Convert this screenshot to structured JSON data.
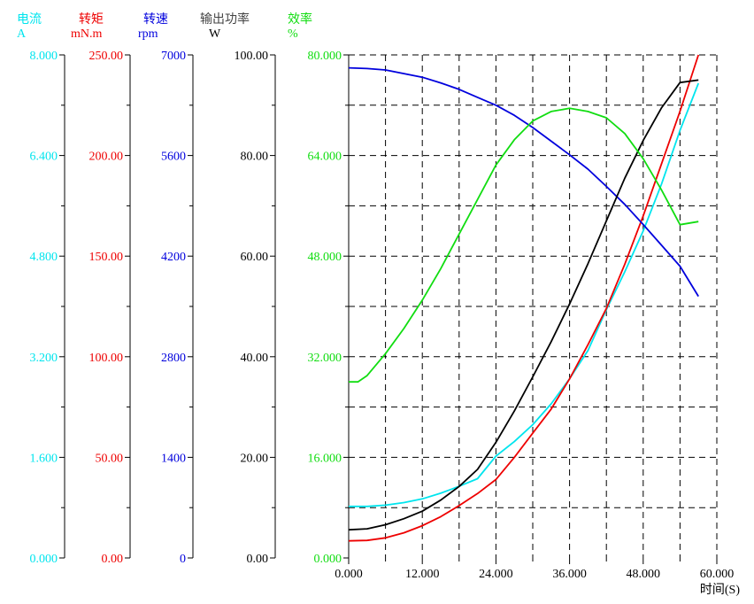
{
  "colors": {
    "current": "#00e5ee",
    "torque": "#ee0000",
    "speed": "#0000dd",
    "power": "#000000",
    "efficiency": "#11dd11",
    "grid": "#000000",
    "header_power": "#444444"
  },
  "axes": [
    {
      "key": "current",
      "name": "电流",
      "unit": "A",
      "ticks": [
        "0.000",
        "1.600",
        "3.200",
        "4.800",
        "6.400",
        "8.000"
      ]
    },
    {
      "key": "torque",
      "name": "转矩",
      "unit": "mN.m",
      "ticks": [
        "0.00",
        "50.00",
        "100.00",
        "150.00",
        "200.00",
        "250.00"
      ]
    },
    {
      "key": "speed",
      "name": "转速",
      "unit": "rpm",
      "ticks": [
        "0",
        "1400",
        "2800",
        "4200",
        "5600",
        "7000"
      ]
    },
    {
      "key": "power",
      "name": "输出功率",
      "unit": "W",
      "ticks": [
        "0.00",
        "20.00",
        "40.00",
        "60.00",
        "80.00",
        "100.00"
      ]
    },
    {
      "key": "efficiency",
      "name": "效率",
      "unit": "%",
      "ticks": [
        "0.000",
        "16.000",
        "32.000",
        "48.000",
        "64.000",
        "80.000"
      ]
    }
  ],
  "chart_data": {
    "type": "line",
    "xlabel": "时间(S)",
    "x_ticks": [
      "0.000",
      "12.000",
      "24.000",
      "36.000",
      "48.000",
      "60.000"
    ],
    "xlim": [
      0,
      60
    ],
    "grid": true,
    "series": [
      {
        "name": "电流",
        "unit": "A",
        "axis": "current",
        "ylim": [
          0,
          8
        ],
        "x": [
          0,
          3,
          6,
          9,
          12,
          15,
          18,
          21,
          24,
          27,
          30,
          33,
          36,
          39,
          42,
          45,
          48,
          51,
          54,
          57
        ],
        "y": [
          0.82,
          0.82,
          0.84,
          0.88,
          0.94,
          1.03,
          1.14,
          1.26,
          1.62,
          1.85,
          2.12,
          2.45,
          2.85,
          3.3,
          3.95,
          4.55,
          5.2,
          5.95,
          6.8,
          7.55
        ]
      },
      {
        "name": "转矩",
        "unit": "mN.m",
        "axis": "torque",
        "ylim": [
          0,
          250
        ],
        "x": [
          0,
          3,
          6,
          9,
          12,
          15,
          18,
          21,
          24,
          27,
          30,
          33,
          36,
          39,
          42,
          45,
          48,
          51,
          54,
          57
        ],
        "y": [
          8.5,
          8.7,
          10,
          12.5,
          16,
          20.5,
          26,
          32,
          39,
          50,
          62,
          74,
          89,
          106,
          124,
          146,
          170,
          196,
          222,
          250
        ]
      },
      {
        "name": "转速",
        "unit": "rpm",
        "axis": "speed",
        "ylim": [
          0,
          7000
        ],
        "x": [
          0,
          3,
          6,
          9,
          12,
          15,
          18,
          21,
          24,
          27,
          30,
          33,
          36,
          39,
          42,
          45,
          48,
          51,
          54,
          57
        ],
        "y": [
          6820,
          6810,
          6790,
          6740,
          6690,
          6610,
          6520,
          6410,
          6300,
          6160,
          5990,
          5800,
          5610,
          5410,
          5170,
          4920,
          4640,
          4350,
          4060,
          3640
        ]
      },
      {
        "name": "输出功率",
        "unit": "W",
        "axis": "power",
        "ylim": [
          0,
          100
        ],
        "x": [
          0,
          3,
          6,
          9,
          12,
          15,
          18,
          21,
          24,
          27,
          30,
          33,
          36,
          39,
          42,
          45,
          48,
          51,
          54,
          57
        ],
        "y": [
          5.6,
          5.8,
          6.6,
          7.8,
          9.3,
          11.5,
          14.2,
          17.6,
          23,
          29.2,
          36,
          43,
          50.5,
          58.5,
          67,
          75.5,
          83,
          89.5,
          94.5,
          95
        ]
      },
      {
        "name": "效率",
        "unit": "%",
        "axis": "efficiency",
        "ylim": [
          0,
          80
        ],
        "x": [
          0,
          1.5,
          3,
          6,
          9,
          12,
          15,
          18,
          21,
          24,
          27,
          30,
          33,
          36,
          39,
          42,
          45,
          48,
          51,
          54,
          57
        ],
        "y": [
          28,
          28,
          29,
          32.5,
          36.5,
          41,
          46,
          51.5,
          57,
          62.5,
          66.5,
          69.5,
          71,
          71.5,
          71,
          70,
          67.5,
          63.5,
          58.5,
          53,
          53.5
        ]
      }
    ]
  }
}
